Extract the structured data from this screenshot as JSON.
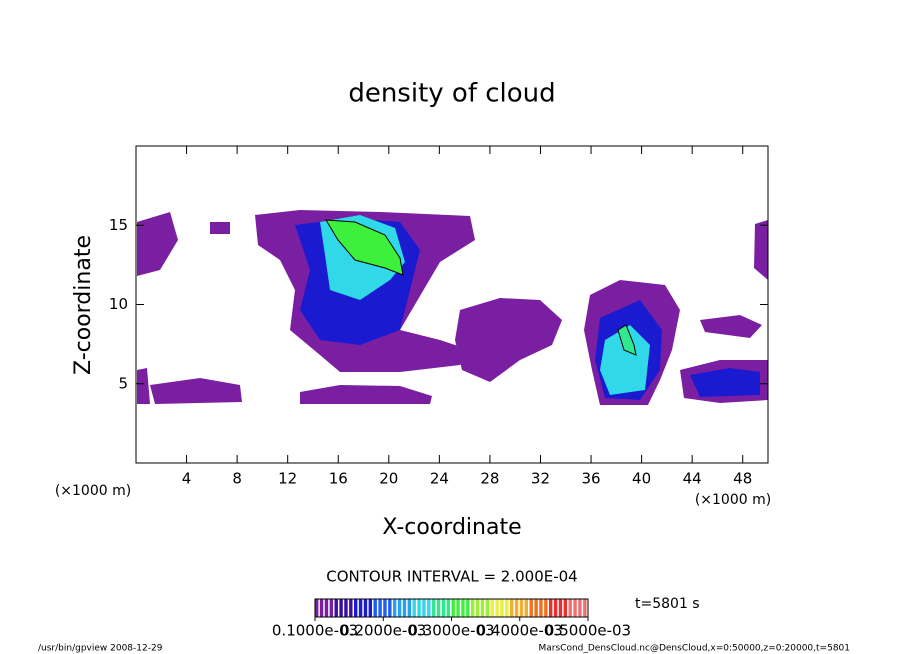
{
  "chart_data": {
    "type": "contour",
    "title": "density of cloud",
    "x_label": "X-coordinate",
    "y_label": "Z-coordinate",
    "x_unit": "(×1000 m)",
    "y_unit": "(×1000 m)",
    "xlim": [
      0,
      50
    ],
    "xticks": [
      4,
      8,
      12,
      16,
      20,
      24,
      28,
      32,
      36,
      40,
      44,
      48
    ],
    "ylim": [
      0,
      20
    ],
    "yticks": [
      5,
      10,
      15
    ],
    "contour_interval": "CONTOUR INTERVAL = 2.000E-04",
    "time_label": "t=5801 s",
    "colorbar": {
      "lim": [
        0.0001,
        0.0005
      ],
      "ticks": [
        {
          "value": 0.0001,
          "label": "0.1000e-03"
        },
        {
          "value": 0.0002,
          "label": "0.2000e-03"
        },
        {
          "value": 0.0003,
          "label": "0.3000e-03"
        },
        {
          "value": 0.0004,
          "label": "0.4000e-03"
        },
        {
          "value": 0.0005,
          "label": "0.5000e-03"
        }
      ],
      "colors": [
        "#7b1fa2",
        "#3a0fa0",
        "#1a1ad0",
        "#1f5ff0",
        "#2aa0f0",
        "#30d8e8",
        "#30e890",
        "#3cf03c",
        "#9cf03c",
        "#e8f040",
        "#f0b030",
        "#f07020",
        "#e83030",
        "#f07070"
      ]
    },
    "footer_left": "/usr/bin/gpview  2008-12-29",
    "footer_right": "MarsCond_DensCloud.nc@DensCloud,x=0:50000,z=0:20000,t=5801"
  }
}
